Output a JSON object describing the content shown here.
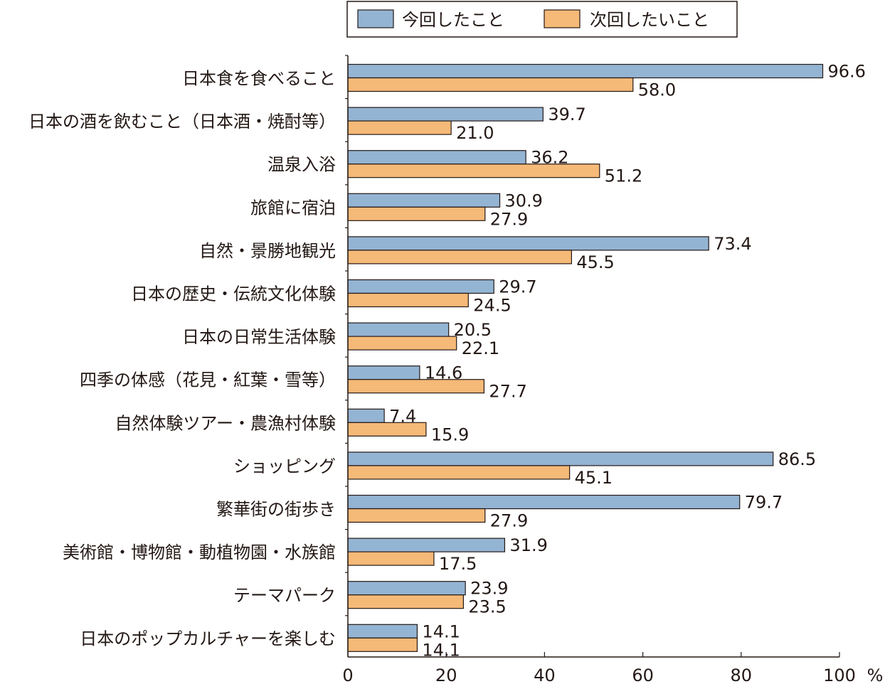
{
  "chart_data": {
    "type": "bar",
    "orientation": "horizontal",
    "categories": [
      "日本食を食べること",
      "日本の酒を飲むこと（日本酒・焼酎等）",
      "温泉入浴",
      "旅館に宿泊",
      "自然・景勝地観光",
      "日本の歴史・伝統文化体験",
      "日本の日常生活体験",
      "四季の体感（花見・紅葉・雪等）",
      "自然体験ツアー・農漁村体験",
      "ショッピング",
      "繁華街の街歩き",
      "美術館・博物館・動植物園・水族館",
      "テーマパーク",
      "日本のポップカルチャーを楽しむ"
    ],
    "series": [
      {
        "name": "今回したこと",
        "color": "#94b4d3",
        "values": [
          96.6,
          39.7,
          36.2,
          30.9,
          73.4,
          29.7,
          20.5,
          14.6,
          7.4,
          86.5,
          79.7,
          31.9,
          23.9,
          14.1
        ]
      },
      {
        "name": "次回したいこと",
        "color": "#f5b978",
        "values": [
          58.0,
          21.0,
          51.2,
          27.9,
          45.5,
          24.5,
          22.1,
          27.7,
          15.9,
          45.1,
          27.9,
          17.5,
          23.5,
          14.1
        ]
      }
    ],
    "x_ticks": [
      "0",
      "20",
      "40",
      "60",
      "80",
      "100"
    ],
    "x_unit": "%",
    "xlim": [
      0,
      100
    ],
    "grid": false,
    "legend_position": "top-right"
  }
}
